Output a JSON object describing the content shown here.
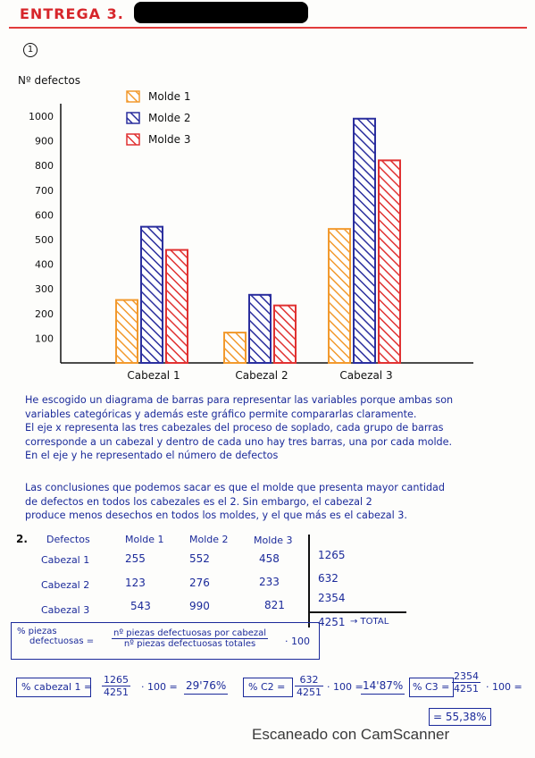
{
  "header": {
    "title": "ENTREGA 3."
  },
  "section1": {
    "number": "1"
  },
  "chart_data": {
    "type": "bar",
    "ylabel": "Nº defectos",
    "ylim": [
      0,
      1000
    ],
    "yticks": [
      100,
      200,
      300,
      400,
      500,
      600,
      700,
      800,
      900,
      1000
    ],
    "categories": [
      "Cabezal 1",
      "Cabezal 2",
      "Cabezal 3"
    ],
    "series": [
      {
        "name": "Molde 1",
        "color": "#f29a2e",
        "values": [
          255,
          123,
          543
        ]
      },
      {
        "name": "Molde 2",
        "color": "#2b2f9e",
        "values": [
          552,
          276,
          990
        ]
      },
      {
        "name": "Molde 3",
        "color": "#e03232",
        "values": [
          458,
          233,
          821
        ]
      }
    ],
    "legend": "top-left"
  },
  "text": {
    "para1": [
      "He escogido un diagrama de barras para representar las variables porque ambas son",
      "variables categóricas y además este gráfico permite compararlas claramente.",
      "El eje x representa las tres cabezales del proceso de soplado, cada grupo de barras",
      "corresponde a un cabezal y dentro de cada uno hay tres barras, una por cada molde.",
      "En el eje y he representado el número de defectos"
    ],
    "para2": [
      "Las conclusiones que podemos sacar es que el molde que presenta mayor cantidad",
      "de defectos en todos los cabezales es el 2. Sin embargo, el cabezal 2",
      "produce menos desechos en todos los moldes, y el que más es el cabezal 3."
    ]
  },
  "table": {
    "number": "2.",
    "corner": "Defectos",
    "columns": [
      "Molde 1",
      "Molde 2",
      "Molde 3"
    ],
    "rows": [
      {
        "label": "Cabezal 1",
        "values": [
          "255",
          "552",
          "458"
        ],
        "total": "1265"
      },
      {
        "label": "Cabezal 2",
        "values": [
          "123",
          "276",
          "233"
        ],
        "total": "632"
      },
      {
        "label": "Cabezal 3",
        "values": [
          "543",
          "990",
          "821"
        ],
        "total": "2354"
      }
    ],
    "grand_total": "4251",
    "total_label": "→ TOTAL"
  },
  "formula": {
    "lhs_top": "% piezas",
    "lhs_bottom": "defectuosas =",
    "numerator": "nº piezas defectuosas por cabezal",
    "denominator": "nº piezas defectuosas totales",
    "times": "· 100"
  },
  "calcs": {
    "c1_label": "% cabezal 1 =",
    "c1_num": "1265",
    "c1_den": "4251",
    "c1_mid": "· 100 =",
    "c1_result": "29'76%",
    "c2_label": "% C2 =",
    "c2_num": "632",
    "c2_den": "4251",
    "c2_mid": "· 100 =",
    "c2_result": "14'87%",
    "c3_label": "% C3 =",
    "c3_num": "2354",
    "c3_den": "4251",
    "c3_mid": "· 100 =",
    "c3_result": "= 55,38%"
  },
  "footer": {
    "scanner": "Escaneado con CamScanner"
  }
}
